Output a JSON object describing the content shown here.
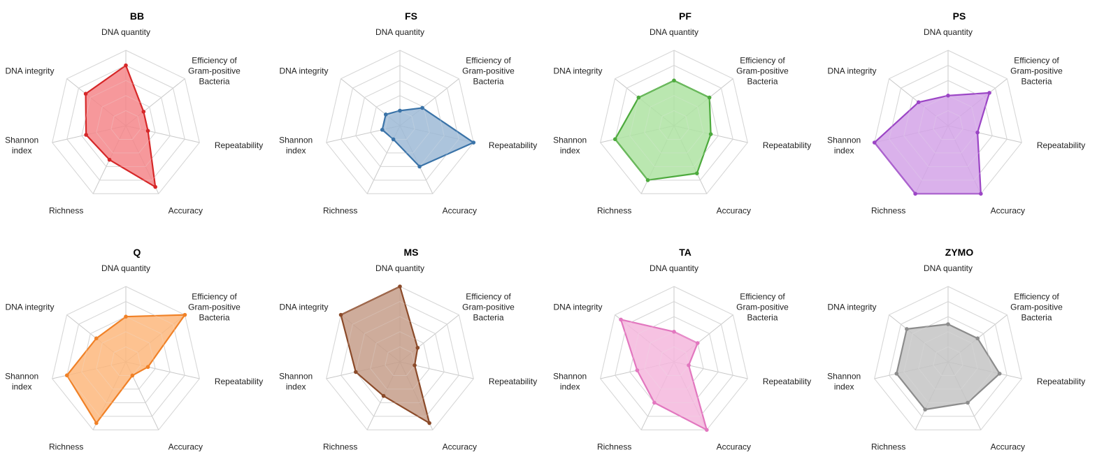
{
  "chart_data": [
    {
      "type": "radar",
      "title": "BB",
      "axes": [
        "DNA quantity",
        "Efficiency of Gram-positive Bacteria",
        "Repeatability",
        "Accuracy",
        "Richness",
        "Shannon index",
        "DNA integrity"
      ],
      "rmax": 5,
      "grid_levels": 5,
      "series": [
        {
          "values": [
            4.0,
            1.5,
            1.5,
            4.5,
            2.5,
            2.7,
            3.4
          ]
        }
      ],
      "color": "#d62728",
      "fill": "#f4868a"
    },
    {
      "type": "radar",
      "title": "FS",
      "axes": [
        "DNA quantity",
        "Efficiency of Gram-positive Bacteria",
        "Repeatability",
        "Accuracy",
        "Richness",
        "Shannon index",
        "DNA integrity"
      ],
      "rmax": 5,
      "grid_levels": 5,
      "series": [
        {
          "values": [
            1.0,
            1.9,
            5.0,
            3.0,
            1.0,
            1.2,
            1.2
          ]
        }
      ],
      "color": "#3a73a8",
      "fill": "#9dbad6"
    },
    {
      "type": "radar",
      "title": "PF",
      "axes": [
        "DNA quantity",
        "Efficiency of Gram-positive Bacteria",
        "Repeatability",
        "Accuracy",
        "Richness",
        "Shannon index",
        "DNA integrity"
      ],
      "rmax": 5,
      "grid_levels": 5,
      "series": [
        {
          "values": [
            3.0,
            3.0,
            2.5,
            3.5,
            4.0,
            4.0,
            3.0
          ]
        }
      ],
      "color": "#4daa3d",
      "fill": "#aee3a2"
    },
    {
      "type": "radar",
      "title": "PS",
      "axes": [
        "DNA quantity",
        "Efficiency of Gram-positive Bacteria",
        "Repeatability",
        "Accuracy",
        "Richness",
        "Shannon index",
        "DNA integrity"
      ],
      "rmax": 5,
      "grid_levels": 5,
      "series": [
        {
          "values": [
            2.0,
            3.5,
            2.0,
            5.0,
            5.0,
            5.0,
            2.5
          ]
        }
      ],
      "color": "#9b45c5",
      "fill": "#d3a3e8"
    },
    {
      "type": "radar",
      "title": "Q",
      "axes": [
        "DNA quantity",
        "Efficiency of Gram-positive Bacteria",
        "Repeatability",
        "Accuracy",
        "Richness",
        "Shannon index",
        "DNA integrity"
      ],
      "rmax": 5,
      "grid_levels": 5,
      "series": [
        {
          "values": [
            3.0,
            5.0,
            1.5,
            1.0,
            4.5,
            4.0,
            2.5
          ]
        }
      ],
      "color": "#f08127",
      "fill": "#fdb77c"
    },
    {
      "type": "radar",
      "title": "MS",
      "axes": [
        "DNA quantity",
        "Efficiency of Gram-positive Bacteria",
        "Repeatability",
        "Accuracy",
        "Richness",
        "Shannon index",
        "DNA integrity"
      ],
      "rmax": 5,
      "grid_levels": 5,
      "series": [
        {
          "values": [
            5.0,
            1.5,
            1.0,
            4.5,
            2.5,
            3.0,
            5.0
          ]
        }
      ],
      "color": "#8b4a29",
      "fill": "#c69e89"
    },
    {
      "type": "radar",
      "title": "TA",
      "axes": [
        "DNA quantity",
        "Efficiency of Gram-positive Bacteria",
        "Repeatability",
        "Accuracy",
        "Richness",
        "Shannon index",
        "DNA integrity"
      ],
      "rmax": 5,
      "grid_levels": 5,
      "series": [
        {
          "values": [
            2.0,
            2.0,
            1.0,
            5.0,
            3.0,
            2.5,
            4.5
          ]
        }
      ],
      "color": "#e277bf",
      "fill": "#f4b7dd"
    },
    {
      "type": "radar",
      "title": "ZYMO",
      "axes": [
        "DNA quantity",
        "Efficiency of Gram-positive Bacteria",
        "Repeatability",
        "Accuracy",
        "Richness",
        "Shannon index",
        "DNA integrity"
      ],
      "rmax": 5,
      "grid_levels": 5,
      "series": [
        {
          "values": [
            2.5,
            2.5,
            3.5,
            3.0,
            3.5,
            3.5,
            3.5
          ]
        }
      ],
      "color": "#8c8c8c",
      "fill": "#c4c4c4"
    }
  ]
}
